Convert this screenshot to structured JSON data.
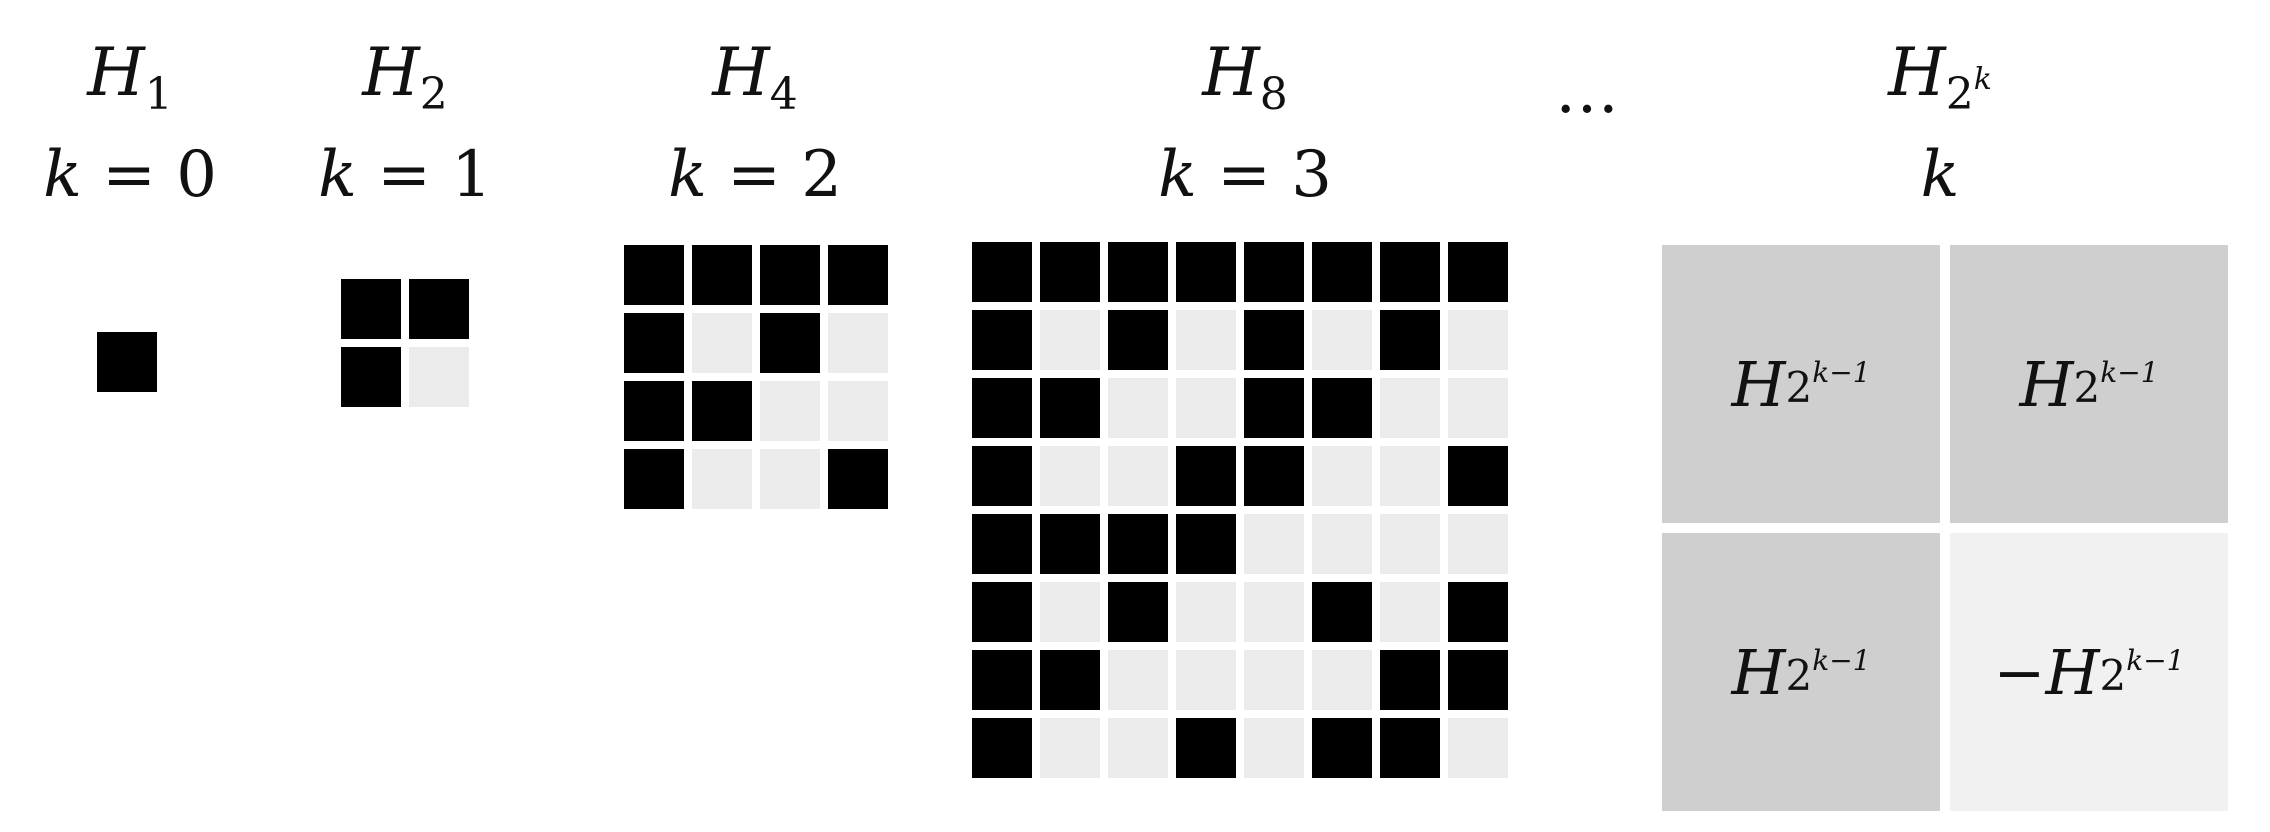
{
  "colors": {
    "positive": "#000000",
    "negative": "#ebebeb",
    "block_positive": "#d0cfcf",
    "block_negative": "#f1f1f1"
  },
  "columns": [
    {
      "name": "H1",
      "title_var": "H",
      "title_sub": "1",
      "k_var": "k",
      "k_op": " = ",
      "k_value": "0"
    },
    {
      "name": "H2",
      "title_var": "H",
      "title_sub": "2",
      "k_var": "k",
      "k_op": " = ",
      "k_value": "1"
    },
    {
      "name": "H4",
      "title_var": "H",
      "title_sub": "4",
      "k_var": "k",
      "k_op": " = ",
      "k_value": "2"
    },
    {
      "name": "H8",
      "title_var": "H",
      "title_sub": "8",
      "k_var": "k",
      "k_op": " = ",
      "k_value": "3"
    }
  ],
  "ellipsis": "…",
  "general": {
    "title_var": "H",
    "title_base": "2",
    "title_exp": "k",
    "k_label": "k",
    "blocks": [
      {
        "sign": "",
        "var": "H",
        "base": "2",
        "exp": "k−1",
        "negative": false
      },
      {
        "sign": "",
        "var": "H",
        "base": "2",
        "exp": "k−1",
        "negative": false
      },
      {
        "sign": "",
        "var": "H",
        "base": "2",
        "exp": "k−1",
        "negative": false
      },
      {
        "sign": "−",
        "var": "H",
        "base": "2",
        "exp": "k−1",
        "negative": true
      }
    ]
  },
  "matrices": {
    "H1": [
      [
        1
      ]
    ],
    "H2": [
      [
        1,
        1
      ],
      [
        1,
        0
      ]
    ],
    "H4": [
      [
        1,
        1,
        1,
        1
      ],
      [
        1,
        0,
        1,
        0
      ],
      [
        1,
        1,
        0,
        0
      ],
      [
        1,
        0,
        0,
        1
      ]
    ],
    "H8": [
      [
        1,
        1,
        1,
        1,
        1,
        1,
        1,
        1
      ],
      [
        1,
        0,
        1,
        0,
        1,
        0,
        1,
        0
      ],
      [
        1,
        1,
        0,
        0,
        1,
        1,
        0,
        0
      ],
      [
        1,
        0,
        0,
        1,
        1,
        0,
        0,
        1
      ],
      [
        1,
        1,
        1,
        1,
        0,
        0,
        0,
        0
      ],
      [
        1,
        0,
        1,
        0,
        0,
        1,
        0,
        1
      ],
      [
        1,
        1,
        0,
        0,
        0,
        0,
        1,
        1
      ],
      [
        1,
        0,
        0,
        1,
        0,
        1,
        1,
        0
      ]
    ]
  }
}
